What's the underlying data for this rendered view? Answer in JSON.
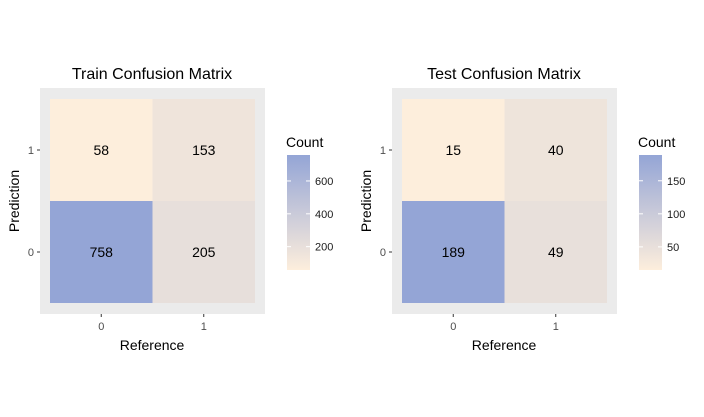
{
  "chart_data": [
    {
      "type": "heatmap",
      "title": "Train Confusion Matrix",
      "xlabel": "Reference",
      "ylabel": "Prediction",
      "x_categories": [
        "0",
        "1"
      ],
      "y_categories": [
        "0",
        "1"
      ],
      "cells": [
        {
          "reference": "0",
          "prediction": "1",
          "count": 58
        },
        {
          "reference": "1",
          "prediction": "1",
          "count": 153
        },
        {
          "reference": "0",
          "prediction": "0",
          "count": 758
        },
        {
          "reference": "1",
          "prediction": "0",
          "count": 205
        }
      ],
      "legend": {
        "title": "Count",
        "ticks": [
          200,
          400,
          600
        ],
        "position": "right"
      },
      "colors": {
        "low": "#fdeedc",
        "high": "#94a5d6",
        "panel_bg": "#ebebeb"
      }
    },
    {
      "type": "heatmap",
      "title": "Test Confusion Matrix",
      "xlabel": "Reference",
      "ylabel": "Prediction",
      "x_categories": [
        "0",
        "1"
      ],
      "y_categories": [
        "0",
        "1"
      ],
      "cells": [
        {
          "reference": "0",
          "prediction": "1",
          "count": 15
        },
        {
          "reference": "1",
          "prediction": "1",
          "count": 40
        },
        {
          "reference": "0",
          "prediction": "0",
          "count": 189
        },
        {
          "reference": "1",
          "prediction": "0",
          "count": 49
        }
      ],
      "legend": {
        "title": "Count",
        "ticks": [
          50,
          100,
          150
        ],
        "position": "right"
      },
      "colors": {
        "low": "#fdeedc",
        "high": "#94a5d6",
        "panel_bg": "#ebebeb"
      }
    }
  ]
}
